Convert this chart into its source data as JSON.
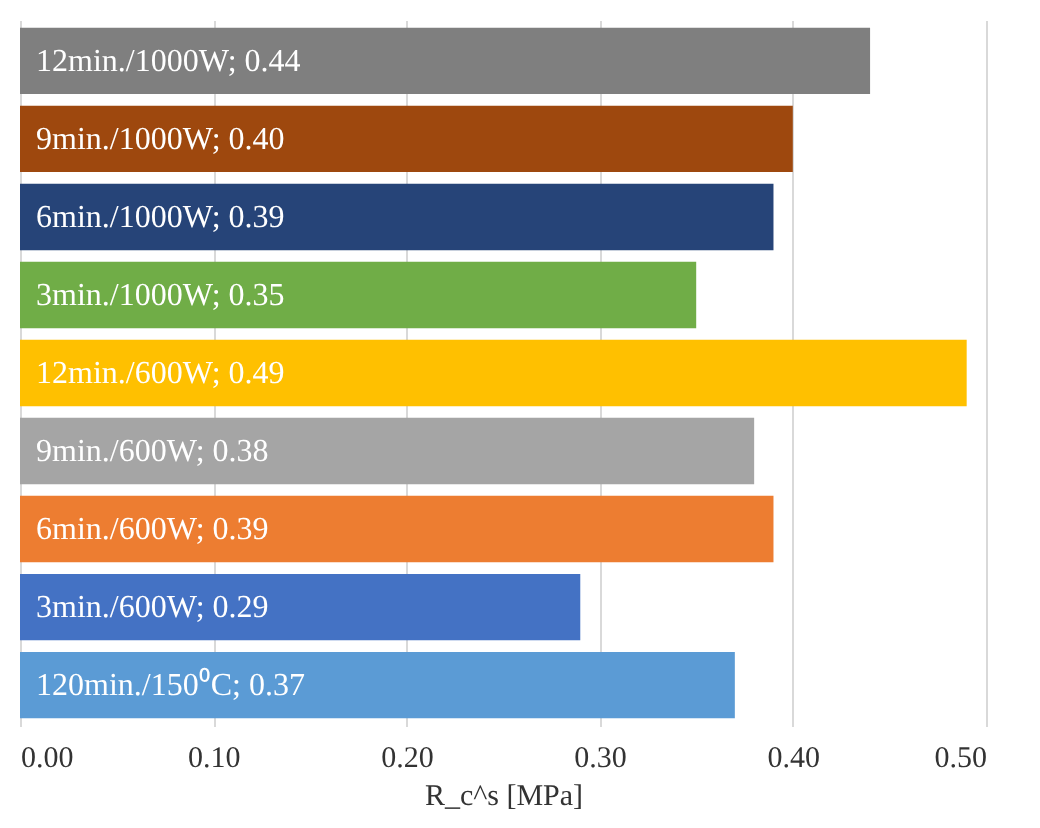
{
  "chart_data": {
    "type": "bar",
    "orientation": "horizontal",
    "categories": [
      null,
      null,
      null,
      null,
      null,
      null,
      null,
      null,
      null
    ],
    "values": [
      0.44,
      0.4,
      0.39,
      0.35,
      0.49,
      0.38,
      0.39,
      0.29,
      0.37
    ],
    "colors": [
      "#7f7f7f",
      "#9e480e",
      "#264478",
      "#70ad47",
      "#ffc000",
      "#a5a5a5",
      "#ed7d31",
      "#4472c4",
      "#5b9bd5"
    ],
    "value_labels": [
      "12min./1000W; 0.44",
      "9min./1000W; 0.40",
      "6min./1000W; 0.39",
      "3min./1000W; 0.35",
      "12min./600W; 0.49",
      "9min./600W; 0.38",
      "6min./600W; 0.39",
      "3min./600W; 0.29",
      "120min./150⁰C; 0.37"
    ],
    "xlabel": "R_c^s [MPa]",
    "xlim": [
      0,
      0.5
    ],
    "xticks": [
      {
        "value": 0,
        "label": "0.00"
      },
      {
        "value": 0.1,
        "label": "0.10"
      },
      {
        "value": 0.2,
        "label": "0.20"
      },
      {
        "value": 0.3,
        "label": "0.30"
      },
      {
        "value": 0.4,
        "label": "0.40"
      },
      {
        "value": 0.5,
        "label": "0.50"
      }
    ],
    "grid": "x",
    "tick_labels": "x"
  }
}
